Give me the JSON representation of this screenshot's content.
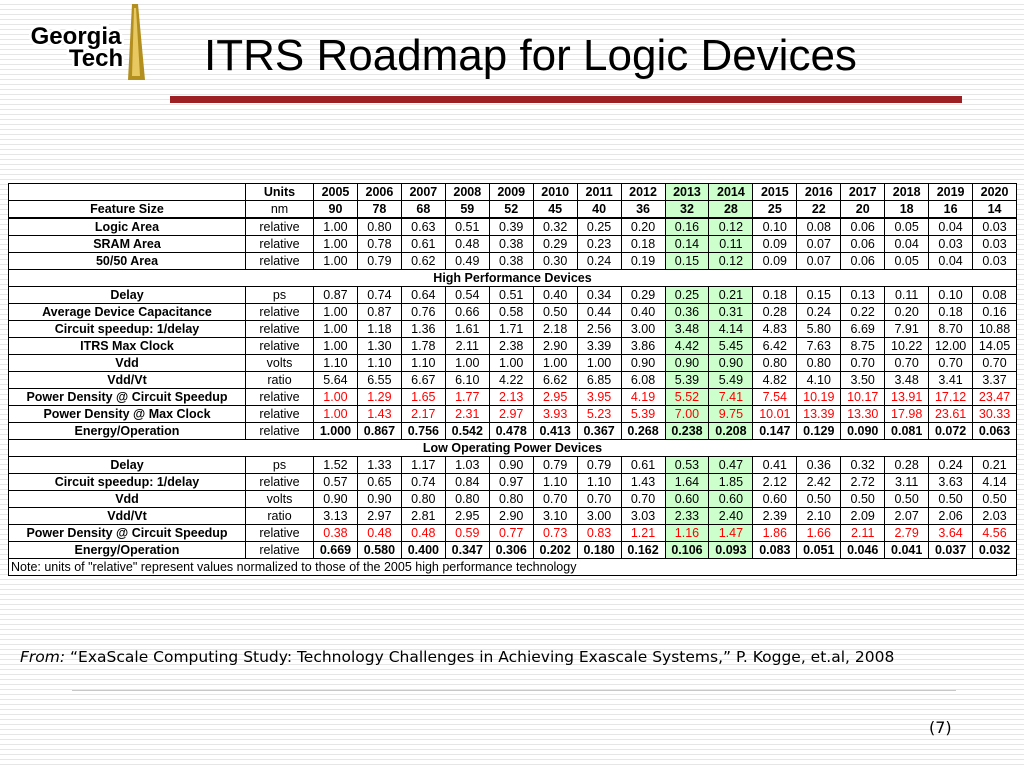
{
  "logo": {
    "line1": "Georgia",
    "line2": "Tech"
  },
  "title": "ITRS Roadmap for Logic Devices",
  "table": {
    "units_header": "Units",
    "years": [
      "2005",
      "2006",
      "2007",
      "2008",
      "2009",
      "2010",
      "2011",
      "2012",
      "2013",
      "2014",
      "2015",
      "2016",
      "2017",
      "2018",
      "2019",
      "2020"
    ],
    "highlight_years": [
      "2013",
      "2014"
    ],
    "sections": [
      {
        "heading": "",
        "rows": [
          {
            "label": "Feature Size",
            "unit": "nm",
            "style": "bold",
            "values": [
              "90",
              "78",
              "68",
              "59",
              "52",
              "45",
              "40",
              "36",
              "32",
              "28",
              "25",
              "22",
              "20",
              "18",
              "16",
              "14"
            ]
          },
          {
            "label": "Logic Area",
            "unit": "relative",
            "style": "normal",
            "values": [
              "1.00",
              "0.80",
              "0.63",
              "0.51",
              "0.39",
              "0.32",
              "0.25",
              "0.20",
              "0.16",
              "0.12",
              "0.10",
              "0.08",
              "0.06",
              "0.05",
              "0.04",
              "0.03"
            ]
          },
          {
            "label": "SRAM Area",
            "unit": "relative",
            "style": "normal",
            "values": [
              "1.00",
              "0.78",
              "0.61",
              "0.48",
              "0.38",
              "0.29",
              "0.23",
              "0.18",
              "0.14",
              "0.11",
              "0.09",
              "0.07",
              "0.06",
              "0.04",
              "0.03",
              "0.03"
            ]
          },
          {
            "label": "50/50 Area",
            "unit": "relative",
            "style": "normal",
            "values": [
              "1.00",
              "0.79",
              "0.62",
              "0.49",
              "0.38",
              "0.30",
              "0.24",
              "0.19",
              "0.15",
              "0.12",
              "0.09",
              "0.07",
              "0.06",
              "0.05",
              "0.04",
              "0.03"
            ]
          }
        ]
      },
      {
        "heading": "High Performance Devices",
        "rows": [
          {
            "label": "Delay",
            "unit": "ps",
            "style": "normal",
            "values": [
              "0.87",
              "0.74",
              "0.64",
              "0.54",
              "0.51",
              "0.40",
              "0.34",
              "0.29",
              "0.25",
              "0.21",
              "0.18",
              "0.15",
              "0.13",
              "0.11",
              "0.10",
              "0.08"
            ]
          },
          {
            "label": "Average Device Capacitance",
            "unit": "relative",
            "style": "normal",
            "values": [
              "1.00",
              "0.87",
              "0.76",
              "0.66",
              "0.58",
              "0.50",
              "0.44",
              "0.40",
              "0.36",
              "0.31",
              "0.28",
              "0.24",
              "0.22",
              "0.20",
              "0.18",
              "0.16"
            ]
          },
          {
            "label": "Circuit speedup: 1/delay",
            "unit": "relative",
            "style": "normal",
            "values": [
              "1.00",
              "1.18",
              "1.36",
              "1.61",
              "1.71",
              "2.18",
              "2.56",
              "3.00",
              "3.48",
              "4.14",
              "4.83",
              "5.80",
              "6.69",
              "7.91",
              "8.70",
              "10.88"
            ]
          },
          {
            "label": "ITRS Max Clock",
            "unit": "relative",
            "style": "normal",
            "values": [
              "1.00",
              "1.30",
              "1.78",
              "2.11",
              "2.38",
              "2.90",
              "3.39",
              "3.86",
              "4.42",
              "5.45",
              "6.42",
              "7.63",
              "8.75",
              "10.22",
              "12.00",
              "14.05"
            ]
          },
          {
            "label": "Vdd",
            "unit": "volts",
            "style": "normal",
            "values": [
              "1.10",
              "1.10",
              "1.10",
              "1.00",
              "1.00",
              "1.00",
              "1.00",
              "0.90",
              "0.90",
              "0.90",
              "0.80",
              "0.80",
              "0.70",
              "0.70",
              "0.70",
              "0.70"
            ]
          },
          {
            "label": "Vdd/Vt",
            "unit": "ratio",
            "style": "normal",
            "values": [
              "5.64",
              "6.55",
              "6.67",
              "6.10",
              "4.22",
              "6.62",
              "6.85",
              "6.08",
              "5.39",
              "5.49",
              "4.82",
              "4.10",
              "3.50",
              "3.48",
              "3.41",
              "3.37"
            ]
          },
          {
            "label": "Power Density @ Circuit Speedup",
            "unit": "relative",
            "style": "red",
            "values": [
              "1.00",
              "1.29",
              "1.65",
              "1.77",
              "2.13",
              "2.95",
              "3.95",
              "4.19",
              "5.52",
              "7.41",
              "7.54",
              "10.19",
              "10.17",
              "13.91",
              "17.12",
              "23.47"
            ]
          },
          {
            "label": "Power Density @ Max Clock",
            "unit": "relative",
            "style": "red",
            "values": [
              "1.00",
              "1.43",
              "2.17",
              "2.31",
              "2.97",
              "3.93",
              "5.23",
              "5.39",
              "7.00",
              "9.75",
              "10.01",
              "13.39",
              "13.30",
              "17.98",
              "23.61",
              "30.33"
            ]
          },
          {
            "label": "Energy/Operation",
            "unit": "relative",
            "style": "bold",
            "values": [
              "1.000",
              "0.867",
              "0.756",
              "0.542",
              "0.478",
              "0.413",
              "0.367",
              "0.268",
              "0.238",
              "0.208",
              "0.147",
              "0.129",
              "0.090",
              "0.081",
              "0.072",
              "0.063"
            ]
          }
        ]
      },
      {
        "heading": "Low Operating Power Devices",
        "rows": [
          {
            "label": "Delay",
            "unit": "ps",
            "style": "normal",
            "values": [
              "1.52",
              "1.33",
              "1.17",
              "1.03",
              "0.90",
              "0.79",
              "0.79",
              "0.61",
              "0.53",
              "0.47",
              "0.41",
              "0.36",
              "0.32",
              "0.28",
              "0.24",
              "0.21"
            ]
          },
          {
            "label": "Circuit speedup: 1/delay",
            "unit": "relative",
            "style": "normal",
            "values": [
              "0.57",
              "0.65",
              "0.74",
              "0.84",
              "0.97",
              "1.10",
              "1.10",
              "1.43",
              "1.64",
              "1.85",
              "2.12",
              "2.42",
              "2.72",
              "3.11",
              "3.63",
              "4.14"
            ]
          },
          {
            "label": "Vdd",
            "unit": "volts",
            "style": "normal",
            "values": [
              "0.90",
              "0.90",
              "0.80",
              "0.80",
              "0.80",
              "0.70",
              "0.70",
              "0.70",
              "0.60",
              "0.60",
              "0.60",
              "0.50",
              "0.50",
              "0.50",
              "0.50",
              "0.50"
            ]
          },
          {
            "label": "Vdd/Vt",
            "unit": "ratio",
            "style": "normal",
            "values": [
              "3.13",
              "2.97",
              "2.81",
              "2.95",
              "2.90",
              "3.10",
              "3.00",
              "3.03",
              "2.33",
              "2.40",
              "2.39",
              "2.10",
              "2.09",
              "2.07",
              "2.06",
              "2.03"
            ]
          },
          {
            "label": "Power Density @ Circuit Speedup",
            "unit": "relative",
            "style": "red",
            "values": [
              "0.38",
              "0.48",
              "0.48",
              "0.59",
              "0.77",
              "0.73",
              "0.83",
              "1.21",
              "1.16",
              "1.47",
              "1.86",
              "1.66",
              "2.11",
              "2.79",
              "3.64",
              "4.56"
            ]
          },
          {
            "label": "Energy/Operation",
            "unit": "relative",
            "style": "bold",
            "values": [
              "0.669",
              "0.580",
              "0.400",
              "0.347",
              "0.306",
              "0.202",
              "0.180",
              "0.162",
              "0.106",
              "0.093",
              "0.083",
              "0.051",
              "0.046",
              "0.041",
              "0.037",
              "0.032"
            ]
          }
        ]
      }
    ],
    "note": "Note: units of \"relative\" represent values normalized to those of the 2005 high performance technology"
  },
  "source": {
    "from_label": "From:",
    "text": "“ExaScale Computing Study: Technology Challenges in Achieving Exascale Systems,” P. Kogge, et.al, 2008"
  },
  "page_number": "(7)",
  "colors": {
    "accent_rule": "#9d2024",
    "highlight": "#ccffcc",
    "red_values": "#ff0000",
    "logo_gold": "#b38f1f"
  }
}
